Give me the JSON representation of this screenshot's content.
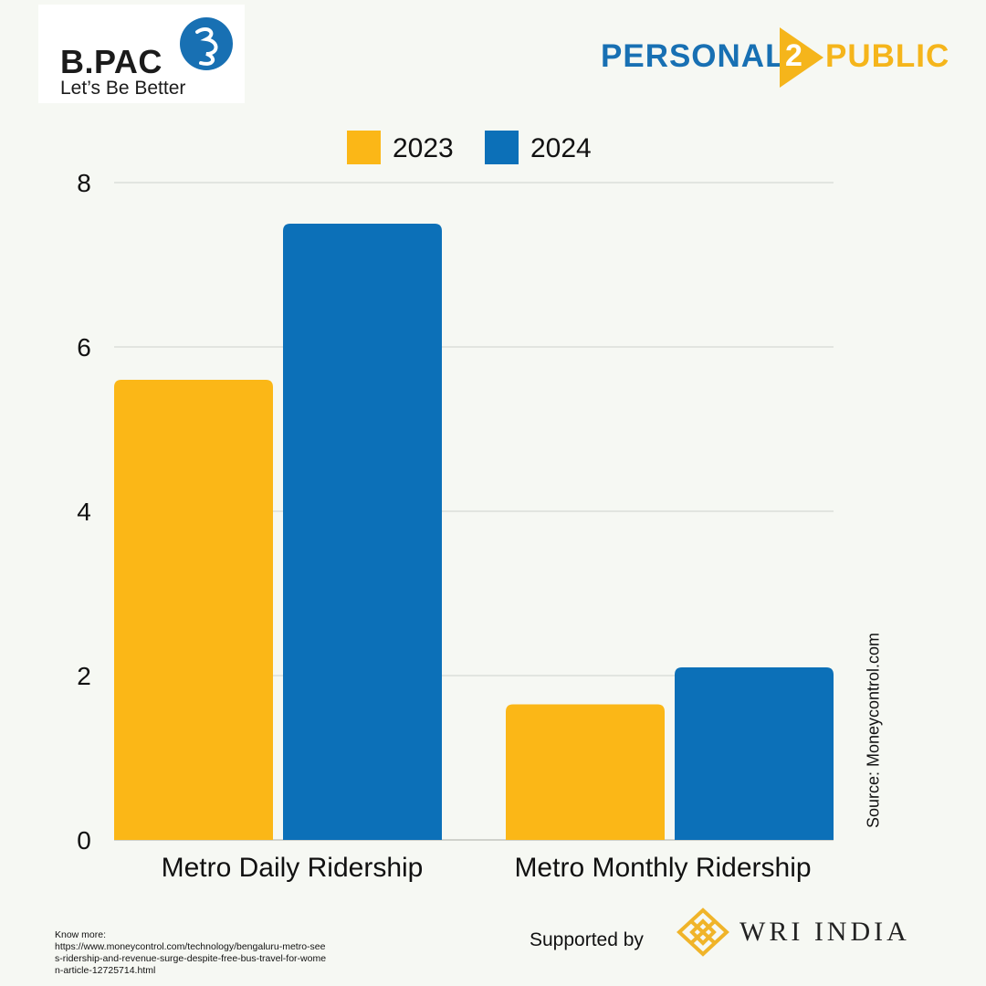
{
  "header": {
    "left_logo": {
      "name": "B.PAC",
      "tagline": "Let’s Be Better",
      "color": "#1870b3"
    },
    "right_logo": {
      "left_word": "PERSONAL",
      "middle": "2",
      "right_word": "PUBLIC",
      "colors": {
        "blue": "#1870b3",
        "yellow": "#f5b51b"
      }
    }
  },
  "chart_data": {
    "type": "bar",
    "categories": [
      "Metro Daily Ridership",
      "Metro Monthly Ridership"
    ],
    "series": [
      {
        "name": "2023",
        "values": [
          5.6,
          1.65
        ],
        "color": "#fbb717"
      },
      {
        "name": "2024",
        "values": [
          7.5,
          2.1
        ],
        "color": "#0c70b8"
      }
    ],
    "ylim": [
      0,
      8
    ],
    "yticks": [
      0,
      2,
      4,
      6,
      8
    ],
    "grid": true,
    "legend": "top-center",
    "title": "",
    "xlabel": "",
    "ylabel": ""
  },
  "source_note": "Source: Moneycontrol.com",
  "footer": {
    "know_more_label": "Know more:",
    "know_more_url": "https://www.moneycontrol.com/technology/bengaluru-metro-sees-ridership-and-revenue-surge-despite-free-bus-travel-for-women-article-12725714.html",
    "supported_by": "Supported by",
    "sponsor": "WRI INDIA",
    "sponsor_color": "#f0b429"
  }
}
